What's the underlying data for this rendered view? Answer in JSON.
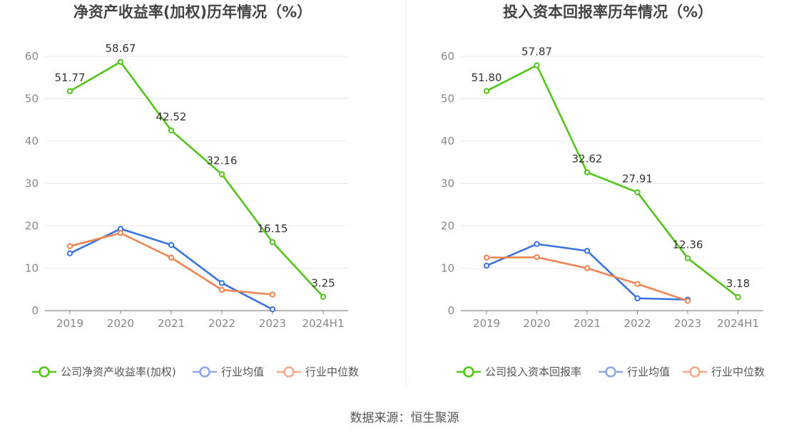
{
  "colors": {
    "company": "#52c41a",
    "avg": "#3b74e0",
    "median": "#f08452",
    "legend_avg": "#8ea8e8",
    "legend_median": "#f6ab8c",
    "grid": "#e6e8ef",
    "tick": "#888888",
    "title": "#444444"
  },
  "footer": {
    "text": "数据来源：恒生聚源"
  },
  "chart_data": [
    {
      "type": "line",
      "title": "净资产收益率(加权)历年情况（%）",
      "xlabel": "",
      "ylabel": "",
      "ylim": [
        0,
        60
      ],
      "yticks": [
        "0",
        "10",
        "20",
        "30",
        "40",
        "50",
        "60"
      ],
      "categories": [
        "2019",
        "2020",
        "2021",
        "2022",
        "2023",
        "2024H1"
      ],
      "series": [
        {
          "name": "公司净资产收益率(加权)",
          "values": [
            51.77,
            58.67,
            42.52,
            32.16,
            16.15,
            3.25
          ],
          "labels": [
            "51.77",
            "58.67",
            "42.52",
            "32.16",
            "16.15",
            "3.25"
          ]
        },
        {
          "name": "行业均值",
          "values": [
            13.5,
            19.3,
            15.5,
            6.5,
            0.3,
            null
          ]
        },
        {
          "name": "行业中位数",
          "values": [
            15.2,
            18.3,
            12.5,
            4.9,
            3.8,
            null
          ]
        }
      ]
    },
    {
      "type": "line",
      "title": "投入资本回报率历年情况（%）",
      "xlabel": "",
      "ylabel": "",
      "ylim": [
        0,
        60
      ],
      "yticks": [
        "0",
        "10",
        "20",
        "30",
        "40",
        "50",
        "60"
      ],
      "categories": [
        "2019",
        "2020",
        "2021",
        "2022",
        "2023",
        "2024H1"
      ],
      "series": [
        {
          "name": "公司投入资本回报率",
          "values": [
            51.8,
            57.87,
            32.62,
            27.91,
            12.36,
            3.18
          ],
          "labels": [
            "51.80",
            "57.87",
            "32.62",
            "27.91",
            "12.36",
            "3.18"
          ]
        },
        {
          "name": "行业均值",
          "values": [
            10.6,
            15.7,
            14.1,
            2.9,
            2.6,
            null
          ]
        },
        {
          "name": "行业中位数",
          "values": [
            12.5,
            12.6,
            10.0,
            6.3,
            2.3,
            null
          ]
        }
      ]
    }
  ]
}
